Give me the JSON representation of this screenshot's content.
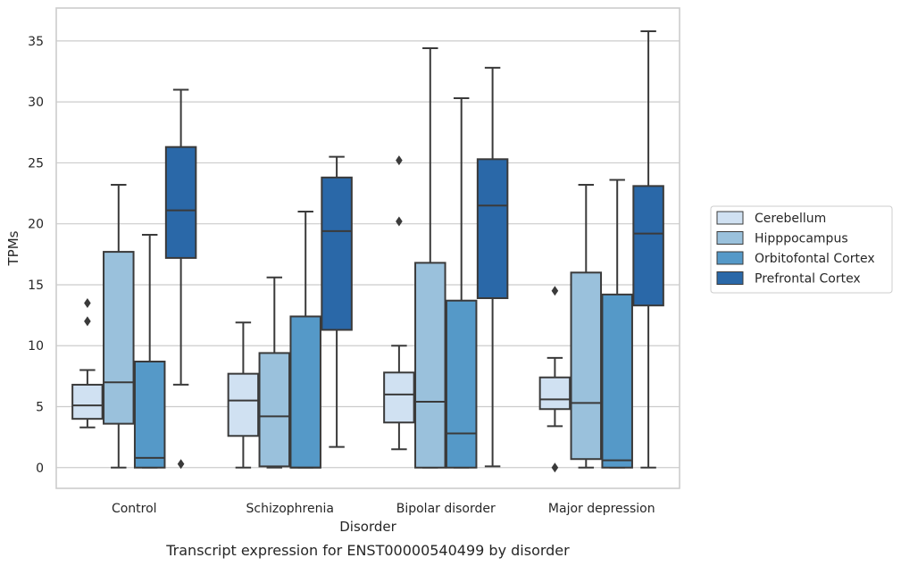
{
  "chart_data": {
    "type": "boxplot",
    "title": "Transcript expression for ENST00000540499 by disorder",
    "xlabel": "Disorder",
    "ylabel": "TPMs",
    "ylim": [
      -1.7,
      37.7
    ],
    "yticks": [
      0,
      5,
      10,
      15,
      20,
      25,
      30,
      35
    ],
    "grid": "horizontal",
    "legend_position": "right",
    "categories": [
      "Control",
      "Schizophrenia",
      "Bipolar disorder",
      "Major depression"
    ],
    "series": [
      {
        "name": "Cerebellum",
        "color": "#d0e1f2",
        "boxes": [
          {
            "whislo": 3.3,
            "q1": 4.0,
            "med": 5.1,
            "q3": 6.8,
            "whishi": 8.0,
            "fliers": [
              12.0,
              13.5
            ]
          },
          {
            "whislo": 0.0,
            "q1": 2.6,
            "med": 5.5,
            "q3": 7.7,
            "whishi": 11.9,
            "fliers": []
          },
          {
            "whislo": 1.5,
            "q1": 3.7,
            "med": 6.0,
            "q3": 7.8,
            "whishi": 10.0,
            "fliers": [
              20.2,
              25.2
            ]
          },
          {
            "whislo": 3.4,
            "q1": 4.8,
            "med": 5.6,
            "q3": 7.4,
            "whishi": 9.0,
            "fliers": [
              0.0,
              14.5
            ]
          }
        ]
      },
      {
        "name": "Hipppocampus",
        "color": "#9ac1dc",
        "boxes": [
          {
            "whislo": 0.0,
            "q1": 3.6,
            "med": 7.0,
            "q3": 17.7,
            "whishi": 23.2,
            "fliers": []
          },
          {
            "whislo": 0.0,
            "q1": 0.1,
            "med": 4.2,
            "q3": 9.4,
            "whishi": 15.6,
            "fliers": []
          },
          {
            "whislo": 0.0,
            "q1": 0.0,
            "med": 5.4,
            "q3": 16.8,
            "whishi": 34.4,
            "fliers": []
          },
          {
            "whislo": 0.0,
            "q1": 0.7,
            "med": 5.3,
            "q3": 16.0,
            "whishi": 23.2,
            "fliers": []
          }
        ]
      },
      {
        "name": "Orbitofontal Cortex",
        "color": "#5599c8",
        "boxes": [
          {
            "whislo": 0.0,
            "q1": 0.0,
            "med": 0.8,
            "q3": 8.7,
            "whishi": 19.1,
            "fliers": []
          },
          {
            "whislo": 0.0,
            "q1": 0.0,
            "med": 0.0,
            "q3": 12.4,
            "whishi": 21.0,
            "fliers": []
          },
          {
            "whislo": 0.0,
            "q1": 0.0,
            "med": 2.8,
            "q3": 13.7,
            "whishi": 30.3,
            "fliers": []
          },
          {
            "whislo": 0.0,
            "q1": 0.0,
            "med": 0.6,
            "q3": 14.2,
            "whishi": 23.6,
            "fliers": []
          }
        ]
      },
      {
        "name": "Prefrontal Cortex",
        "color": "#2a68a8",
        "boxes": [
          {
            "whislo": 6.8,
            "q1": 17.2,
            "med": 21.1,
            "q3": 26.3,
            "whishi": 31.0,
            "fliers": [
              0.3
            ]
          },
          {
            "whislo": 1.7,
            "q1": 11.3,
            "med": 19.4,
            "q3": 23.8,
            "whishi": 25.5,
            "fliers": []
          },
          {
            "whislo": 0.1,
            "q1": 13.9,
            "med": 21.5,
            "q3": 25.3,
            "whishi": 32.8,
            "fliers": []
          },
          {
            "whislo": 0.0,
            "q1": 13.3,
            "med": 19.2,
            "q3": 23.1,
            "whishi": 35.8,
            "fliers": []
          }
        ]
      }
    ]
  }
}
